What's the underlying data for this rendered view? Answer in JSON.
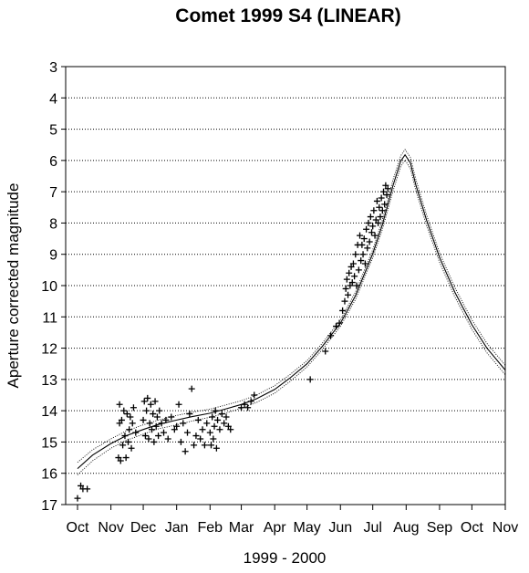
{
  "chart_data": {
    "type": "scatter",
    "title": "Comet 1999 S4 (LINEAR)",
    "xlabel": "1999 - 2000",
    "ylabel": "Aperture corrected magnitude",
    "x_ticks": [
      "Oct",
      "Nov",
      "Dec",
      "Jan",
      "Feb",
      "Mar",
      "Apr",
      "May",
      "Jun",
      "Jul",
      "Aug",
      "Sep",
      "Oct",
      "Nov"
    ],
    "x_tick_dates": [
      "1999-10-01",
      "1999-11-01",
      "1999-12-01",
      "2000-01-01",
      "2000-02-01",
      "2000-03-01",
      "2000-04-01",
      "2000-05-01",
      "2000-06-01",
      "2000-07-01",
      "2000-08-01",
      "2000-09-01",
      "2000-10-01",
      "2000-11-01"
    ],
    "xlim": [
      "1999-09-20",
      "2000-11-01"
    ],
    "ylim": [
      3,
      17
    ],
    "y_ticks": [
      3,
      4,
      5,
      6,
      7,
      8,
      9,
      10,
      11,
      12,
      13,
      14,
      15,
      16,
      17
    ],
    "y_reversed": true,
    "grid": "horizontal-dotted",
    "series": [
      {
        "marker": "+",
        "points": [
          [
            "1999-10-01",
            16.8
          ],
          [
            "1999-10-04",
            16.4
          ],
          [
            "1999-10-06",
            16.5
          ],
          [
            "1999-10-10",
            16.5
          ],
          [
            "1999-11-08",
            15.5
          ],
          [
            "1999-11-09",
            14.4
          ],
          [
            "1999-11-09",
            13.8
          ],
          [
            "1999-11-10",
            15.6
          ],
          [
            "1999-11-11",
            14.3
          ],
          [
            "1999-11-12",
            15.1
          ],
          [
            "1999-11-13",
            14.0
          ],
          [
            "1999-11-14",
            14.8
          ],
          [
            "1999-11-15",
            15.5
          ],
          [
            "1999-11-16",
            14.1
          ],
          [
            "1999-11-17",
            15.0
          ],
          [
            "1999-11-18",
            14.6
          ],
          [
            "1999-11-19",
            14.2
          ],
          [
            "1999-11-20",
            15.2
          ],
          [
            "1999-11-21",
            14.4
          ],
          [
            "1999-11-22",
            13.9
          ],
          [
            "1999-11-24",
            14.7
          ],
          [
            "1999-12-01",
            14.3
          ],
          [
            "1999-12-02",
            13.7
          ],
          [
            "1999-12-03",
            14.8
          ],
          [
            "1999-12-04",
            14.0
          ],
          [
            "1999-12-05",
            13.6
          ],
          [
            "1999-12-06",
            14.9
          ],
          [
            "1999-12-07",
            14.4
          ],
          [
            "1999-12-08",
            13.8
          ],
          [
            "1999-12-09",
            14.6
          ],
          [
            "1999-12-10",
            14.1
          ],
          [
            "1999-12-11",
            15.0
          ],
          [
            "1999-12-12",
            13.7
          ],
          [
            "1999-12-13",
            14.5
          ],
          [
            "1999-12-14",
            14.2
          ],
          [
            "1999-12-15",
            14.8
          ],
          [
            "1999-12-16",
            14.0
          ],
          [
            "1999-12-18",
            14.4
          ],
          [
            "1999-12-20",
            14.7
          ],
          [
            "1999-12-22",
            14.3
          ],
          [
            "1999-12-24",
            14.9
          ],
          [
            "1999-12-27",
            14.2
          ],
          [
            "1999-12-30",
            14.6
          ],
          [
            "2000-01-01",
            14.5
          ],
          [
            "2000-01-03",
            13.8
          ],
          [
            "2000-01-05",
            15.0
          ],
          [
            "2000-01-07",
            14.4
          ],
          [
            "2000-01-09",
            15.3
          ],
          [
            "2000-01-11",
            14.7
          ],
          [
            "2000-01-13",
            14.1
          ],
          [
            "2000-01-15",
            13.3
          ],
          [
            "2000-01-17",
            15.1
          ],
          [
            "2000-01-19",
            14.8
          ],
          [
            "2000-01-21",
            14.3
          ],
          [
            "2000-01-23",
            14.9
          ],
          [
            "2000-01-25",
            14.6
          ],
          [
            "2000-01-27",
            15.1
          ],
          [
            "2000-01-29",
            14.4
          ],
          [
            "2000-02-01",
            14.7
          ],
          [
            "2000-02-02",
            15.1
          ],
          [
            "2000-02-03",
            14.2
          ],
          [
            "2000-02-04",
            14.9
          ],
          [
            "2000-02-05",
            14.5
          ],
          [
            "2000-02-06",
            14.0
          ],
          [
            "2000-02-07",
            15.2
          ],
          [
            "2000-02-08",
            14.3
          ],
          [
            "2000-02-10",
            14.6
          ],
          [
            "2000-02-12",
            14.1
          ],
          [
            "2000-02-14",
            14.4
          ],
          [
            "2000-02-16",
            14.2
          ],
          [
            "2000-02-18",
            14.5
          ],
          [
            "2000-02-20",
            14.6
          ],
          [
            "2000-03-01",
            13.9
          ],
          [
            "2000-03-04",
            13.8
          ],
          [
            "2000-03-07",
            13.9
          ],
          [
            "2000-03-10",
            13.7
          ],
          [
            "2000-03-13",
            13.5
          ],
          [
            "2000-05-04",
            13.0
          ],
          [
            "2000-05-18",
            12.1
          ],
          [
            "2000-05-23",
            11.6
          ],
          [
            "2000-05-28",
            11.3
          ],
          [
            "2000-05-31",
            11.2
          ],
          [
            "2000-06-03",
            10.8
          ],
          [
            "2000-06-05",
            10.5
          ],
          [
            "2000-06-06",
            10.1
          ],
          [
            "2000-06-07",
            9.8
          ],
          [
            "2000-06-08",
            10.3
          ],
          [
            "2000-06-09",
            9.6
          ],
          [
            "2000-06-10",
            10.0
          ],
          [
            "2000-06-11",
            9.4
          ],
          [
            "2000-06-12",
            9.9
          ],
          [
            "2000-06-13",
            9.3
          ],
          [
            "2000-06-14",
            9.7
          ],
          [
            "2000-06-15",
            9.0
          ],
          [
            "2000-06-16",
            10.0
          ],
          [
            "2000-06-17",
            8.7
          ],
          [
            "2000-06-18",
            9.5
          ],
          [
            "2000-06-19",
            8.4
          ],
          [
            "2000-06-20",
            9.2
          ],
          [
            "2000-06-21",
            8.7
          ],
          [
            "2000-06-22",
            9.0
          ],
          [
            "2000-06-23",
            8.5
          ],
          [
            "2000-06-24",
            9.3
          ],
          [
            "2000-06-25",
            8.2
          ],
          [
            "2000-06-26",
            8.8
          ],
          [
            "2000-06-27",
            8.0
          ],
          [
            "2000-06-28",
            8.6
          ],
          [
            "2000-06-29",
            7.8
          ],
          [
            "2000-06-30",
            8.3
          ],
          [
            "2000-07-01",
            8.1
          ],
          [
            "2000-07-02",
            7.6
          ],
          [
            "2000-07-03",
            8.4
          ],
          [
            "2000-07-04",
            7.9
          ],
          [
            "2000-07-05",
            7.3
          ],
          [
            "2000-07-06",
            8.0
          ],
          [
            "2000-07-07",
            7.5
          ],
          [
            "2000-07-08",
            7.8
          ],
          [
            "2000-07-09",
            7.2
          ],
          [
            "2000-07-10",
            7.6
          ],
          [
            "2000-07-11",
            7.0
          ],
          [
            "2000-07-12",
            7.4
          ],
          [
            "2000-07-13",
            6.8
          ],
          [
            "2000-07-14",
            7.1
          ],
          [
            "2000-07-15",
            6.9
          ]
        ]
      }
    ],
    "model_curves": [
      {
        "style": "dotted-outer",
        "points": [
          [
            "1999-10-01",
            15.65
          ],
          [
            "1999-10-15",
            15.25
          ],
          [
            "1999-11-01",
            14.9
          ],
          [
            "1999-11-15",
            14.65
          ],
          [
            "1999-12-01",
            14.45
          ],
          [
            "1999-12-15",
            14.3
          ],
          [
            "2000-01-01",
            14.15
          ],
          [
            "2000-01-15",
            14.05
          ],
          [
            "2000-02-01",
            13.95
          ],
          [
            "2000-02-15",
            13.82
          ],
          [
            "2000-03-01",
            13.68
          ],
          [
            "2000-03-15",
            13.5
          ],
          [
            "2000-04-01",
            13.2
          ],
          [
            "2000-04-15",
            12.85
          ],
          [
            "2000-05-01",
            12.4
          ],
          [
            "2000-05-15",
            11.85
          ],
          [
            "2000-06-01",
            11.1
          ],
          [
            "2000-06-15",
            10.2
          ],
          [
            "2000-07-01",
            8.85
          ],
          [
            "2000-07-10",
            7.9
          ],
          [
            "2000-07-20",
            6.6
          ],
          [
            "2000-07-27",
            5.85
          ],
          [
            "2000-07-31",
            5.65
          ],
          [
            "2000-08-05",
            5.9
          ],
          [
            "2000-08-10",
            6.6
          ],
          [
            "2000-08-20",
            7.75
          ],
          [
            "2000-09-01",
            8.95
          ],
          [
            "2000-09-15",
            10.05
          ],
          [
            "2000-10-01",
            11.1
          ],
          [
            "2000-10-15",
            11.85
          ],
          [
            "2000-11-01",
            12.55
          ]
        ]
      },
      {
        "style": "solid",
        "points": [
          [
            "1999-10-01",
            15.85
          ],
          [
            "1999-10-15",
            15.42
          ],
          [
            "1999-11-01",
            15.05
          ],
          [
            "1999-11-15",
            14.8
          ],
          [
            "1999-12-01",
            14.6
          ],
          [
            "1999-12-15",
            14.44
          ],
          [
            "2000-01-01",
            14.3
          ],
          [
            "2000-01-15",
            14.19
          ],
          [
            "2000-02-01",
            14.08
          ],
          [
            "2000-02-15",
            13.95
          ],
          [
            "2000-03-01",
            13.8
          ],
          [
            "2000-03-15",
            13.62
          ],
          [
            "2000-04-01",
            13.32
          ],
          [
            "2000-04-15",
            12.96
          ],
          [
            "2000-05-01",
            12.5
          ],
          [
            "2000-05-15",
            11.95
          ],
          [
            "2000-06-01",
            11.2
          ],
          [
            "2000-06-15",
            10.32
          ],
          [
            "2000-07-01",
            8.98
          ],
          [
            "2000-07-10",
            8.05
          ],
          [
            "2000-07-20",
            6.78
          ],
          [
            "2000-07-27",
            6.02
          ],
          [
            "2000-07-31",
            5.82
          ],
          [
            "2000-08-05",
            6.08
          ],
          [
            "2000-08-10",
            6.78
          ],
          [
            "2000-08-20",
            7.92
          ],
          [
            "2000-09-01",
            9.1
          ],
          [
            "2000-09-15",
            10.2
          ],
          [
            "2000-10-01",
            11.25
          ],
          [
            "2000-10-15",
            12.0
          ],
          [
            "2000-11-01",
            12.7
          ]
        ]
      },
      {
        "style": "dotted-inner",
        "points": [
          [
            "1999-10-01",
            16.05
          ],
          [
            "1999-10-15",
            15.6
          ],
          [
            "1999-11-01",
            15.2
          ],
          [
            "1999-11-15",
            14.95
          ],
          [
            "1999-12-01",
            14.75
          ],
          [
            "1999-12-15",
            14.58
          ],
          [
            "2000-01-01",
            14.45
          ],
          [
            "2000-01-15",
            14.33
          ],
          [
            "2000-02-01",
            14.21
          ],
          [
            "2000-02-15",
            14.08
          ],
          [
            "2000-03-01",
            13.92
          ],
          [
            "2000-03-15",
            13.74
          ],
          [
            "2000-04-01",
            13.44
          ],
          [
            "2000-04-15",
            13.07
          ],
          [
            "2000-05-01",
            12.6
          ],
          [
            "2000-05-15",
            12.05
          ],
          [
            "2000-06-01",
            11.3
          ],
          [
            "2000-06-15",
            10.44
          ],
          [
            "2000-07-01",
            9.11
          ],
          [
            "2000-07-10",
            8.2
          ],
          [
            "2000-07-20",
            6.96
          ],
          [
            "2000-07-27",
            6.19
          ],
          [
            "2000-07-31",
            5.99
          ],
          [
            "2000-08-05",
            6.26
          ],
          [
            "2000-08-10",
            6.96
          ],
          [
            "2000-08-20",
            8.09
          ],
          [
            "2000-09-01",
            9.25
          ],
          [
            "2000-09-15",
            10.35
          ],
          [
            "2000-10-01",
            11.4
          ],
          [
            "2000-10-15",
            12.15
          ],
          [
            "2000-11-01",
            12.85
          ]
        ]
      }
    ]
  }
}
